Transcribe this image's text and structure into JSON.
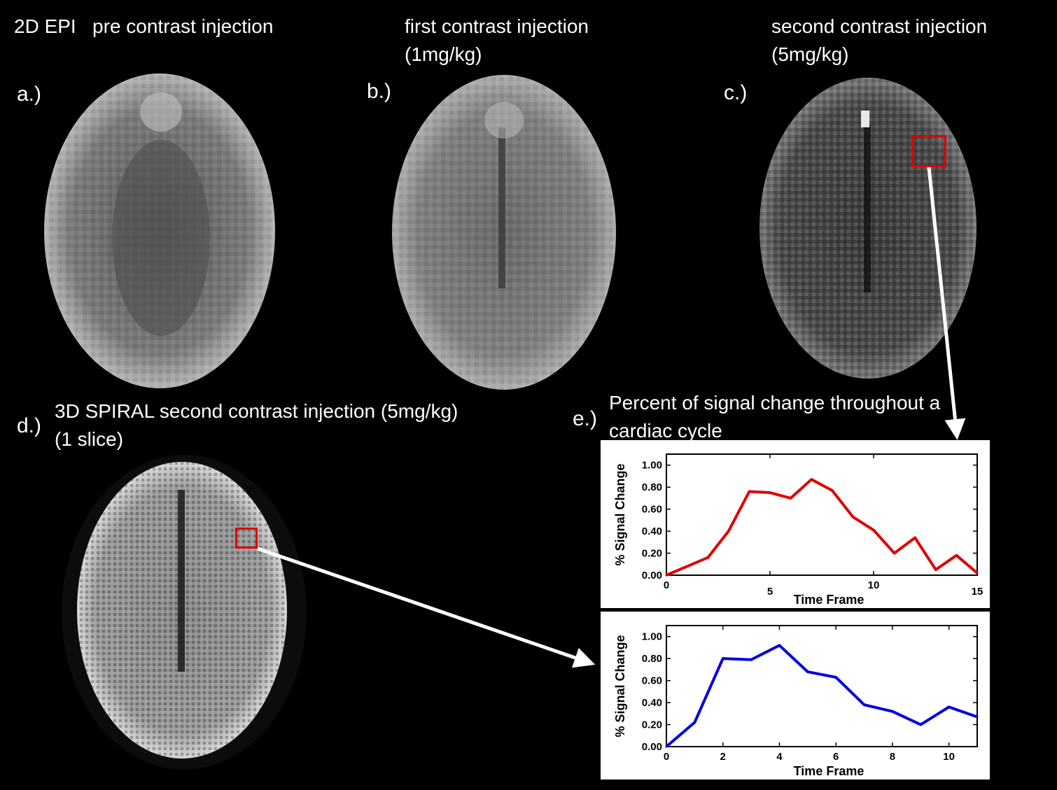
{
  "header": {
    "a_title": "2D EPI   pre contrast injection",
    "b_title_line1": "first contrast injection",
    "b_title_line2": "(1mg/kg)",
    "c_title_line1": "second contrast injection",
    "c_title_line2": "(5mg/kg)"
  },
  "panels": {
    "a": "a.)",
    "b": "b.)",
    "c": "c.)",
    "d": "d.)",
    "e": "e.)"
  },
  "d_title": {
    "line1": "3D SPIRAL second contrast injection (5mg/kg)",
    "line2": "(1 slice)"
  },
  "e_title": {
    "line1": "Percent of signal change throughout a",
    "line2": "cardiac cycle"
  },
  "colors": {
    "roi": "#e00000",
    "epi_series": "#e00000",
    "spiral_series": "#0000e0",
    "arrow": "#ffffff"
  },
  "chart_data": [
    {
      "type": "line",
      "xlabel": "Time Frame",
      "ylabel": "% Signal Change",
      "xlim": [
        0,
        15
      ],
      "ylim": [
        0,
        1.1
      ],
      "xticks": [
        0,
        5,
        10,
        15
      ],
      "yticks": [
        "0.00",
        "0.20",
        "0.40",
        "0.60",
        "0.80",
        "1.00"
      ],
      "series": [
        {
          "color": "#e00000",
          "x": [
            0,
            1,
            2,
            3,
            4,
            5,
            6,
            7,
            8,
            9,
            10,
            11,
            12,
            13,
            14,
            15
          ],
          "y": [
            0.0,
            0.08,
            0.16,
            0.4,
            0.76,
            0.75,
            0.7,
            0.87,
            0.77,
            0.53,
            0.41,
            0.2,
            0.34,
            0.05,
            0.18,
            0.02
          ]
        }
      ]
    },
    {
      "type": "line",
      "xlabel": "Time Frame",
      "ylabel": "% Signal Change",
      "xlim": [
        0,
        11
      ],
      "ylim": [
        0,
        1.1
      ],
      "xticks": [
        0,
        2,
        4,
        6,
        8,
        10
      ],
      "yticks": [
        "0.00",
        "0.20",
        "0.40",
        "0.60",
        "0.80",
        "1.00"
      ],
      "series": [
        {
          "color": "#0000e0",
          "x": [
            0,
            1,
            2,
            3,
            4,
            5,
            6,
            7,
            8,
            9,
            10,
            11
          ],
          "y": [
            0.0,
            0.22,
            0.8,
            0.79,
            0.92,
            0.68,
            0.63,
            0.38,
            0.32,
            0.2,
            0.36,
            0.27
          ]
        }
      ]
    }
  ]
}
